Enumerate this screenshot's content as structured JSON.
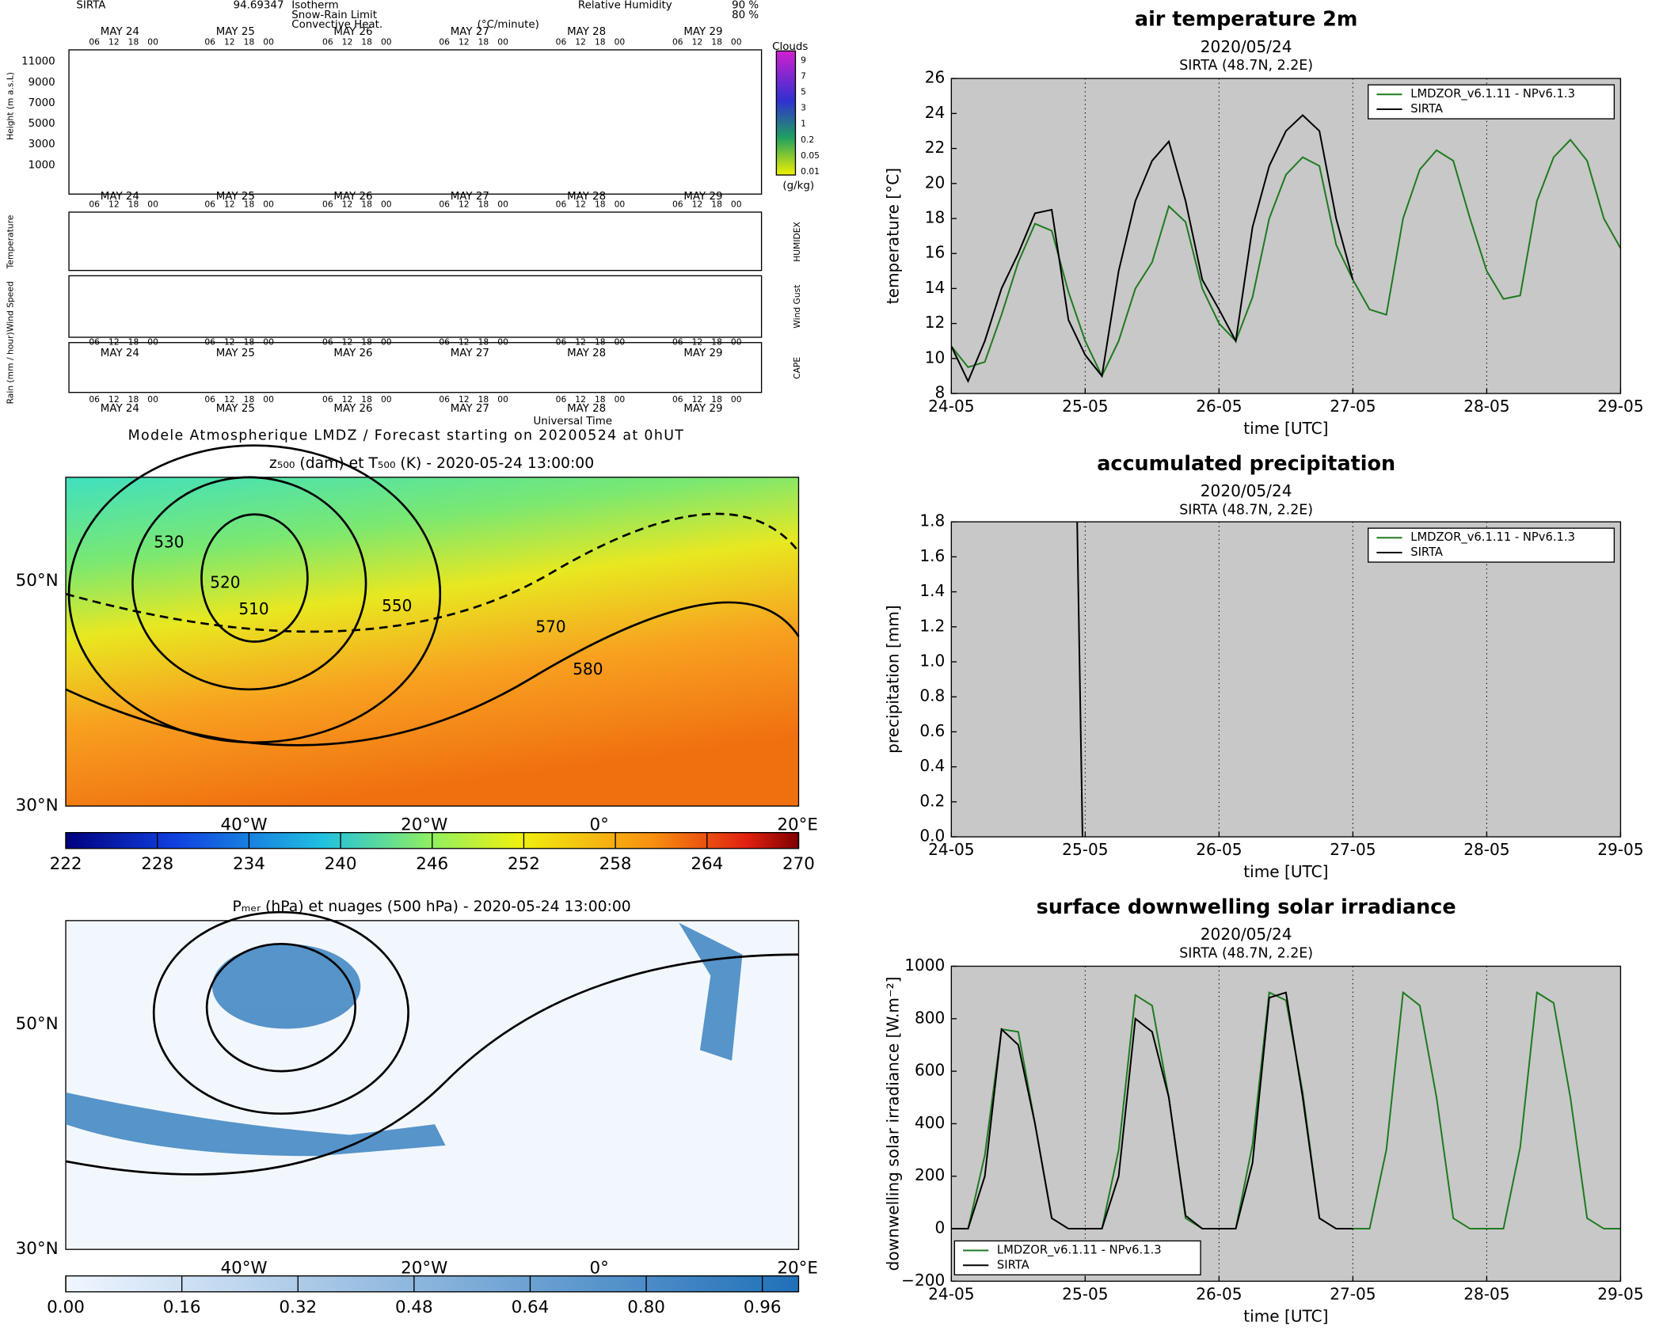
{
  "meteogram": {
    "station": "SIRTA",
    "altitude": "94.69347",
    "legend": [
      "Isotherm",
      "Snow-Rain Limit",
      "Convective Heat.",
      "(°C/minute)"
    ],
    "humidity_legend": [
      "Relative Humidity",
      "90 %",
      "80 %"
    ],
    "days": [
      "MAY 24",
      "MAY 25",
      "MAY 26",
      "MAY 27",
      "MAY 28",
      "MAY 29"
    ],
    "hours": [
      "06",
      "12",
      "18",
      "00"
    ],
    "height_label": "Height (m a.s.L)",
    "heights": [
      "11000",
      "9000",
      "7000",
      "5000",
      "3000",
      "1000"
    ],
    "clouds_title": "Clouds",
    "cloud_scale": [
      "9",
      "7",
      "5",
      "3",
      "1",
      "0.2",
      "0.05",
      "0.01"
    ],
    "cloud_unit": "(g/kg)",
    "panel_labels": [
      "Temperature",
      "HUMIDEX",
      "Wind Speed",
      "Wind Gust",
      "Rain (mm / hour)",
      "CAPE"
    ],
    "time_label": "Universal Time",
    "footer": "Modele Atmospherique LMDZ / Forecast starting on 20200524 at 0hUT"
  },
  "maps": [
    {
      "title": "z₅₀₀ (dam) et T₅₀₀ (K) - 2020-05-24 13:00:00",
      "lat_labels": [
        "50°N",
        "30°N"
      ],
      "lon_labels": [
        "40°W",
        "20°W",
        "0°",
        "20°E"
      ],
      "contour_labels": [
        "530",
        "520",
        "510",
        "550",
        "570",
        "580"
      ],
      "colorbar_lim": [
        222,
        270
      ],
      "colorbar_ticks": [
        222,
        228,
        234,
        240,
        246,
        252,
        258,
        264,
        270
      ]
    },
    {
      "title": "Pₘₑᵣ (hPa) et nuages (500 hPa) - 2020-05-24 13:00:00",
      "lat_labels": [
        "50°N",
        "30°N"
      ],
      "lon_labels": [
        "40°W",
        "20°W",
        "0°",
        "20°E"
      ],
      "colorbar_lim": [
        0,
        1.01
      ],
      "colorbar_ticks": [
        {
          "value": 0,
          "label": "0.00"
        },
        {
          "value": 0.16,
          "label": "0.16"
        },
        {
          "value": 0.32,
          "label": "0.32"
        },
        {
          "value": 0.48,
          "label": "0.48"
        },
        {
          "value": 0.64,
          "label": "0.64"
        },
        {
          "value": 0.8,
          "label": "0.80"
        },
        {
          "value": 0.96,
          "label": "0.96"
        }
      ]
    }
  ],
  "chart_data": [
    {
      "type": "line",
      "title": "air temperature 2m",
      "subtitle": "2020/05/24",
      "location": "SIRTA (48.7N, 2.2E)",
      "x_label": "time [UTC]",
      "y_label": "temperature [°C]",
      "legend": "upper right",
      "grid": "x",
      "xlim": [
        24,
        29
      ],
      "xticks": [
        {
          "value": 24,
          "label": "24-05"
        },
        {
          "value": 25,
          "label": "25-05"
        },
        {
          "value": 26,
          "label": "26-05"
        },
        {
          "value": 27,
          "label": "27-05"
        },
        {
          "value": 28,
          "label": "28-05"
        },
        {
          "value": 29,
          "label": "29-05"
        }
      ],
      "ylim": [
        8,
        26
      ],
      "yticks": [
        8,
        10,
        12,
        14,
        16,
        18,
        20,
        22,
        24,
        26
      ],
      "x": [
        24,
        24.125,
        24.25,
        24.375,
        24.5,
        24.625,
        24.75,
        24.875,
        25,
        25.125,
        25.25,
        25.375,
        25.5,
        25.625,
        25.75,
        25.875,
        26,
        26.125,
        26.25,
        26.375,
        26.5,
        26.625,
        26.75,
        26.875,
        27,
        27.125,
        27.25,
        27.375,
        27.5,
        27.625,
        27.75,
        27.875,
        28,
        28.125,
        28.25,
        28.375,
        28.5,
        28.625,
        28.75,
        28.875,
        29
      ],
      "series": [
        {
          "name": "LMDZOR_v6.1.11 - NPv6.1.3",
          "color": "#1f7a1f",
          "values": [
            10.7,
            9.5,
            9.8,
            12.5,
            15.5,
            17.7,
            17.3,
            13.8,
            11,
            9,
            11,
            14,
            15.5,
            18.7,
            17.8,
            14,
            12,
            11,
            13.5,
            18,
            20.5,
            21.5,
            21,
            16.5,
            14.5,
            12.8,
            12.5,
            18,
            20.8,
            21.9,
            21.3,
            18,
            15,
            13.4,
            13.6,
            19,
            21.5,
            22.5,
            21.3,
            18,
            16.3
          ]
        },
        {
          "name": "SIRTA",
          "color": "#000000",
          "values": [
            10.7,
            8.7,
            11,
            14,
            16,
            18.3,
            18.5,
            12.2,
            10.2,
            9,
            15,
            19,
            21.3,
            22.4,
            19,
            14.5,
            12.8,
            11,
            17.5,
            21,
            23,
            23.9,
            23,
            18,
            14.5,
            null,
            null,
            null,
            null,
            null,
            null,
            null,
            null,
            null,
            null,
            null,
            null,
            null,
            null,
            null,
            null
          ]
        }
      ]
    },
    {
      "type": "line",
      "title": "accumulated precipitation",
      "subtitle": "2020/05/24",
      "location": "SIRTA (48.7N, 2.2E)",
      "x_label": "time [UTC]",
      "y_label": "precipitation [mm]",
      "legend": "upper right",
      "grid": "x",
      "xlim": [
        24,
        29
      ],
      "xticks": [
        {
          "value": 24,
          "label": "24-05"
        },
        {
          "value": 25,
          "label": "25-05"
        },
        {
          "value": 26,
          "label": "26-05"
        },
        {
          "value": 27,
          "label": "27-05"
        },
        {
          "value": 28,
          "label": "28-05"
        },
        {
          "value": 29,
          "label": "29-05"
        }
      ],
      "ylim": [
        0,
        1.8
      ],
      "yticks": [
        {
          "value": 0,
          "label": "0.0"
        },
        0.2,
        0.4,
        0.6,
        0.8,
        {
          "value": 1,
          "label": "1.0"
        },
        1.2,
        1.4,
        1.6,
        1.8
      ],
      "x": [
        24.94,
        24.98
      ],
      "series": [
        {
          "name": "LMDZOR_v6.1.11 - NPv6.1.3",
          "color": "#1f7a1f",
          "values": [
            null,
            null
          ]
        },
        {
          "name": "SIRTA",
          "color": "#000000",
          "values": [
            1.8,
            0
          ]
        }
      ]
    },
    {
      "type": "line",
      "title": "surface downwelling solar irradiance",
      "subtitle": "2020/05/24",
      "location": "SIRTA (48.7N, 2.2E)",
      "x_label": "time [UTC]",
      "y_label": "downwelling solar irradiance [W.m⁻²]",
      "legend": "lower left",
      "grid": "x",
      "xlim": [
        24,
        29
      ],
      "xticks": [
        {
          "value": 24,
          "label": "24-05"
        },
        {
          "value": 25,
          "label": "25-05"
        },
        {
          "value": 26,
          "label": "26-05"
        },
        {
          "value": 27,
          "label": "27-05"
        },
        {
          "value": 28,
          "label": "28-05"
        },
        {
          "value": 29,
          "label": "29-05"
        }
      ],
      "ylim": [
        -200,
        1000
      ],
      "yticks": [
        {
          "value": -200,
          "label": "−200"
        },
        0,
        200,
        400,
        600,
        800,
        1000
      ],
      "x": [
        24,
        24.125,
        24.25,
        24.375,
        24.5,
        24.625,
        24.75,
        24.875,
        25,
        25.125,
        25.25,
        25.375,
        25.5,
        25.625,
        25.75,
        25.875,
        26,
        26.125,
        26.25,
        26.375,
        26.5,
        26.625,
        26.75,
        26.875,
        27,
        27.125,
        27.25,
        27.375,
        27.5,
        27.625,
        27.75,
        27.875,
        28,
        28.125,
        28.25,
        28.375,
        28.5,
        28.625,
        28.75,
        28.875,
        29
      ],
      "series": [
        {
          "name": "LMDZOR_v6.1.11 - NPv6.1.3",
          "color": "#1f7a1f",
          "values": [
            0,
            0,
            280,
            760,
            750,
            400,
            40,
            0,
            0,
            0,
            300,
            890,
            850,
            500,
            40,
            0,
            0,
            0,
            320,
            900,
            870,
            520,
            40,
            0,
            0,
            0,
            300,
            900,
            850,
            500,
            40,
            0,
            0,
            0,
            310,
            900,
            860,
            500,
            40,
            0,
            0
          ]
        },
        {
          "name": "SIRTA",
          "color": "#000000",
          "values": [
            0,
            0,
            200,
            760,
            700,
            400,
            40,
            0,
            0,
            0,
            200,
            800,
            750,
            500,
            50,
            0,
            0,
            0,
            250,
            880,
            900,
            500,
            40,
            0,
            0,
            null,
            null,
            null,
            null,
            null,
            null,
            null,
            null,
            null,
            null,
            null,
            null,
            null,
            null,
            null,
            null
          ]
        }
      ]
    }
  ]
}
